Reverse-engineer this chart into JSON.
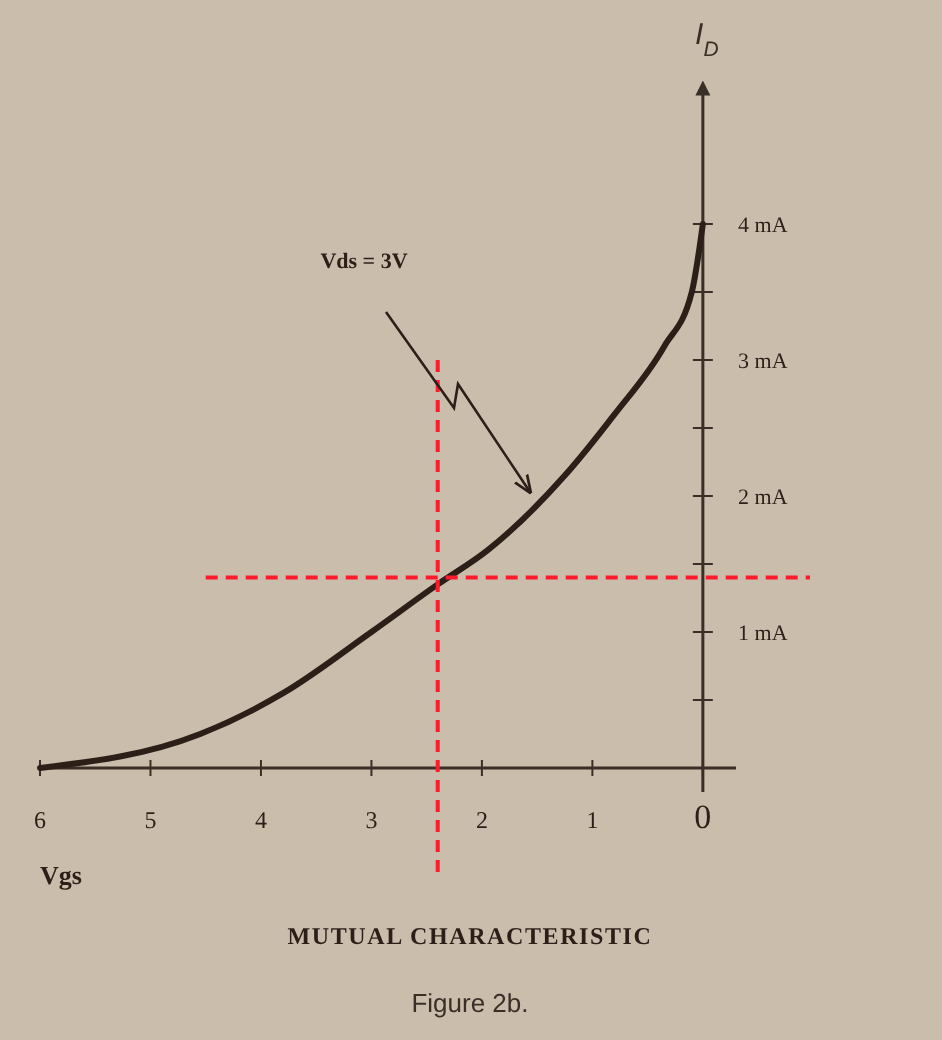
{
  "chart_data": {
    "type": "line",
    "title": "MUTUAL CHARACTERISTIC",
    "xlabel": "Vgs",
    "ylabel": "I$_{D}$",
    "x": [
      6,
      4.55,
      3.8,
      3,
      2.4,
      1.95,
      1.25,
      0.8,
      0.35,
      0.1,
      0
    ],
    "values": [
      0,
      0.25,
      0.55,
      1,
      1.35,
      1.6,
      2.15,
      2.6,
      3.1,
      3.5,
      4
    ],
    "color": "#2b1f18",
    "xlim": [
      6,
      -0.3
    ],
    "ylim": [
      0,
      5
    ],
    "xticks": [
      6,
      5,
      4,
      3,
      2,
      1,
      0
    ],
    "yticks": [
      {
        "value": 0.5,
        "label": null
      },
      {
        "value": 1,
        "label": "1 mA"
      },
      {
        "value": 1.5,
        "label": null
      },
      {
        "value": 2,
        "label": "2 mA"
      },
      {
        "value": 2.5,
        "label": null
      },
      {
        "value": 3,
        "label": "3 mA"
      },
      {
        "value": 3.5,
        "label": null
      },
      {
        "value": 4,
        "label": "4 mA"
      }
    ],
    "ref_lines": [
      {
        "axis": "x",
        "value": 2.4,
        "color": "#ff1a2e",
        "line_style": "dashed"
      },
      {
        "axis": "y",
        "value": 1.4,
        "color": "#ff1a2e",
        "line_style": "dashed"
      }
    ],
    "annotations": [
      "Vds = 3V",
      "Figure 2b."
    ]
  }
}
